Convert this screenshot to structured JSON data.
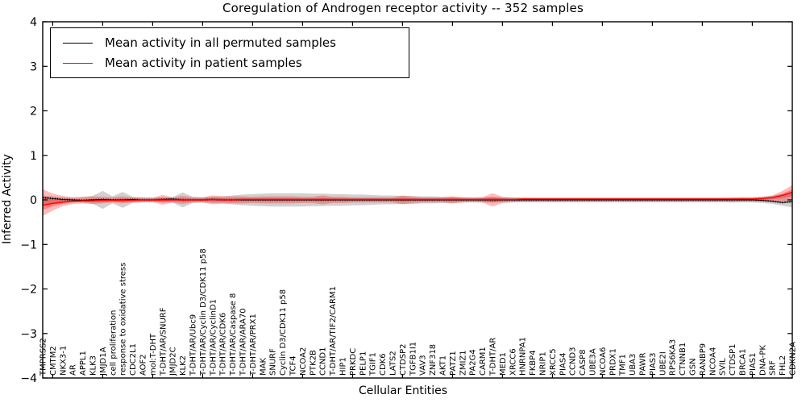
{
  "title": "Coregulation of Androgen receptor activity -- 352 samples",
  "axes": {
    "ylabel": "Inferred Activity",
    "xlabel": "Cellular Entities"
  },
  "legend": {
    "items": [
      {
        "label": "Mean activity in all permuted samples",
        "color": "#000000"
      },
      {
        "label": "Mean activity in patient samples",
        "color": "#ff0000"
      }
    ],
    "position": "upper left"
  },
  "chart_data": {
    "type": "line",
    "title": "Coregulation of Androgen receptor activity -- 352 samples",
    "xlabel": "Cellular Entities",
    "ylabel": "Inferred Activity",
    "ylim": [
      -4,
      4
    ],
    "yticks": [
      "4",
      "3",
      "2",
      "1",
      "0",
      "−1",
      "−2",
      "−3",
      "−4"
    ],
    "ytick_values": [
      4,
      3,
      2,
      1,
      0,
      -1,
      -2,
      -3,
      -4
    ],
    "grid": false,
    "legend_position": "upper left",
    "categories": [
      "TMPRSS2",
      "CMTM2",
      "NKX3-1",
      "AR",
      "APPL1",
      "KLK3",
      "JMJD1A",
      "cell proliferation",
      "response to oxidative stress",
      "CDC2L1",
      "AOF2",
      "mol:T-DHT",
      "T-DHT/AR/SNURF",
      "JMJD2C",
      "KLK2",
      "T-DHT/AR/Ubc9",
      "T-DHT/AR/Cyclin D3/CDK11 p58",
      "T-DHT/AR/CyclinD1",
      "T-DHT/AR/CDK6",
      "T-DHT/AR/Caspase 8",
      "T-DHT/AR/ARA70",
      "T-DHT/AR/PRX1",
      "MAK",
      "SNURF",
      "Cyclin D3/CDK11 p58",
      "TCF4",
      "NCOA2",
      "PTK2B",
      "CCND1",
      "T-DHT/AR/TIF2/CARM1",
      "HIP1",
      "PRKDC",
      "PELP1",
      "TGIF1",
      "CDK6",
      "LATS2",
      "CTDSP2",
      "TGFB1I1",
      "VAV3",
      "ZNF318",
      "AKT1",
      "PATZ1",
      "ZMIZ1",
      "PA2G4",
      "CARM1",
      "T-DHT/AR",
      "MED1",
      "XRCC6",
      "HNRNPA1",
      "FKBP4",
      "NRIP1",
      "XRCC5",
      "PIAS4",
      "CCND3",
      "CASP8",
      "UBE3A",
      "NCOA6",
      "PRDX1",
      "TMF1",
      "UBA3",
      "PAWR",
      "PIAS3",
      "UBE2I",
      "RPS6KA3",
      "CTNNB1",
      "GSN",
      "RANBP9",
      "NCOA4",
      "SVIL",
      "CTDSP1",
      "BRCA1",
      "PIAS1",
      "DNA-PK",
      "SRF",
      "FHL2",
      "CDKN2A"
    ],
    "series": [
      {
        "name": "Mean activity in all permuted samples",
        "color": "#000000",
        "style": "dotted",
        "values": [
          0.05,
          0.03,
          0.01,
          0,
          -0.01,
          0,
          0.01,
          0,
          0,
          0.01,
          0,
          0,
          0.01,
          0.02,
          0,
          0,
          0,
          0.01,
          0,
          0,
          0,
          0,
          0,
          0,
          0,
          0,
          0,
          0,
          0,
          0,
          0,
          0,
          0,
          0,
          0,
          0,
          0,
          0,
          0,
          0,
          0,
          0,
          0,
          0,
          0,
          0,
          0,
          0,
          0,
          0,
          0,
          0,
          0,
          0,
          0,
          0,
          0,
          0,
          0,
          0,
          0,
          0,
          0,
          0,
          0,
          0,
          0,
          0,
          0,
          0,
          0,
          0,
          -0.01,
          -0.03,
          -0.06,
          -0.04
        ]
      },
      {
        "name": "Mean activity in patient samples",
        "color": "#ff0000",
        "style": "solid",
        "values": [
          -0.12,
          -0.08,
          -0.05,
          -0.03,
          -0.02,
          -0.02,
          -0.01,
          -0.01,
          -0.01,
          -0.01,
          0,
          0,
          0,
          0,
          0,
          0,
          0,
          0.01,
          0,
          0,
          0.01,
          0.01,
          0.01,
          0.01,
          0.01,
          0.01,
          0.01,
          0.01,
          0.01,
          0.01,
          0.01,
          0.01,
          0.01,
          0.01,
          0.01,
          0.01,
          0.01,
          0.01,
          0.01,
          0.01,
          0.01,
          0.01,
          0.01,
          0.01,
          0.01,
          0.01,
          0.01,
          0.01,
          0.02,
          0.02,
          0.02,
          0.02,
          0.02,
          0.02,
          0.02,
          0.02,
          0.02,
          0.02,
          0.02,
          0.02,
          0.02,
          0.02,
          0.02,
          0.02,
          0.02,
          0.02,
          0.02,
          0.02,
          0.02,
          0.02,
          0.02,
          0.02,
          0.03,
          0.05,
          0.1,
          0.17
        ]
      }
    ],
    "bands": [
      {
        "name": "permuted samples spread",
        "color": "rgba(0,0,0,0.18)",
        "half_width": [
          0.1,
          0.08,
          0.06,
          0.05,
          0.06,
          0.09,
          0.2,
          0.08,
          0.18,
          0.07,
          0.06,
          0.05,
          0.06,
          0.06,
          0.17,
          0.07,
          0.06,
          0.07,
          0.08,
          0.1,
          0.12,
          0.13,
          0.14,
          0.15,
          0.15,
          0.15,
          0.15,
          0.14,
          0.14,
          0.13,
          0.13,
          0.12,
          0.12,
          0.11,
          0.1,
          0.1,
          0.09,
          0.09,
          0.08,
          0.08,
          0.07,
          0.07,
          0.06,
          0.06,
          0.06,
          0.06,
          0.06,
          0.06,
          0.05,
          0.05,
          0.05,
          0.05,
          0.05,
          0.05,
          0.05,
          0.05,
          0.05,
          0.05,
          0.05,
          0.05,
          0.05,
          0.05,
          0.05,
          0.05,
          0.05,
          0.05,
          0.05,
          0.05,
          0.05,
          0.06,
          0.06,
          0.06,
          0.07,
          0.09,
          0.13,
          0.17
        ]
      },
      {
        "name": "patient samples spread",
        "color": "rgba(255,0,0,0.27)",
        "upper": [
          0.24,
          0.14,
          0.09,
          0.06,
          0.07,
          0.08,
          0.07,
          0.06,
          0.08,
          0.06,
          0.05,
          0.05,
          0.11,
          0.06,
          0.09,
          0.06,
          0.06,
          0.1,
          0.08,
          0.08,
          0.08,
          0.07,
          0.08,
          0.08,
          0.08,
          0.08,
          0.07,
          0.07,
          0.1,
          0.07,
          0.07,
          0.06,
          0.06,
          0.06,
          0.06,
          0.06,
          0.1,
          0.07,
          0.06,
          0.06,
          0.06,
          0.08,
          0.06,
          0.05,
          0.06,
          0.15,
          0.07,
          0.05,
          0.05,
          0.05,
          0.05,
          0.05,
          0.05,
          0.05,
          0.05,
          0.05,
          0.05,
          0.05,
          0.05,
          0.05,
          0.05,
          0.05,
          0.05,
          0.05,
          0.05,
          0.05,
          0.05,
          0.05,
          0.05,
          0.05,
          0.06,
          0.06,
          0.07,
          0.1,
          0.2,
          0.33
        ],
        "lower": [
          -0.36,
          -0.24,
          -0.14,
          -0.09,
          -0.08,
          -0.09,
          -0.08,
          -0.06,
          -0.08,
          -0.06,
          -0.05,
          -0.05,
          -0.11,
          -0.06,
          -0.09,
          -0.06,
          -0.06,
          -0.1,
          -0.08,
          -0.08,
          -0.08,
          -0.07,
          -0.08,
          -0.08,
          -0.08,
          -0.08,
          -0.07,
          -0.07,
          -0.1,
          -0.07,
          -0.07,
          -0.06,
          -0.06,
          -0.06,
          -0.06,
          -0.06,
          -0.1,
          -0.07,
          -0.06,
          -0.06,
          -0.06,
          -0.08,
          -0.06,
          -0.05,
          -0.06,
          -0.15,
          -0.07,
          -0.05,
          -0.05,
          -0.05,
          -0.05,
          -0.05,
          -0.05,
          -0.05,
          -0.05,
          -0.05,
          -0.05,
          -0.05,
          -0.05,
          -0.05,
          -0.05,
          -0.05,
          -0.05,
          -0.05,
          -0.05,
          -0.05,
          -0.05,
          -0.05,
          -0.05,
          -0.05,
          -0.04,
          -0.04,
          -0.04,
          -0.04,
          -0.04,
          -0.03
        ]
      }
    ]
  }
}
